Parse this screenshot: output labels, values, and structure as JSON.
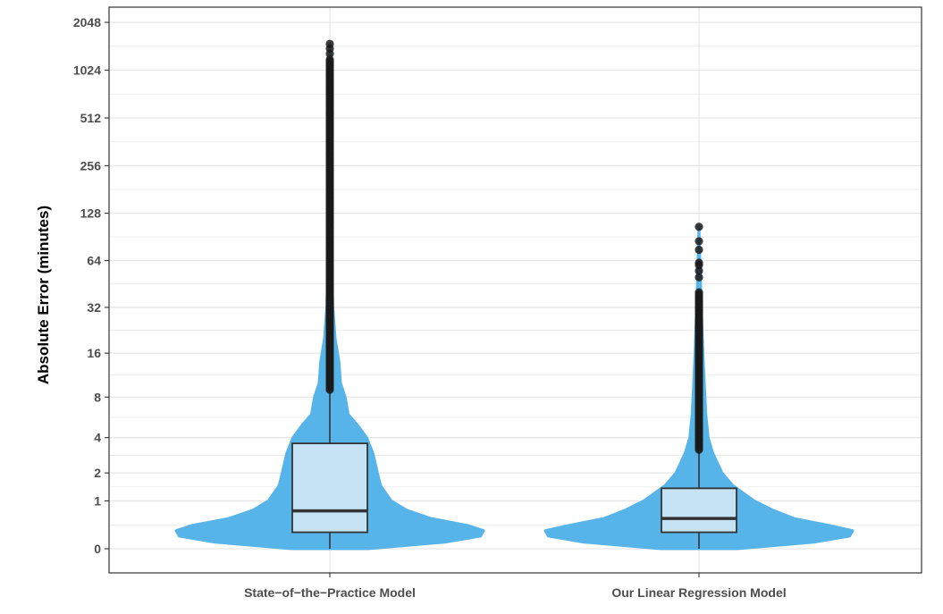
{
  "chart_data": {
    "type": "violin",
    "title": "",
    "xlabel": "",
    "ylabel": "Absolute Error (minutes)",
    "yscale": "log2(1 + y)",
    "y_ticks": [
      0,
      1,
      2,
      4,
      8,
      16,
      32,
      64,
      128,
      256,
      512,
      1024,
      2048
    ],
    "y_tick_labels": [
      "0",
      "1",
      "2",
      "4",
      "8",
      "16",
      "32",
      "64",
      "128",
      "256",
      "512",
      "1024",
      "2048"
    ],
    "ylim": [
      0,
      2048
    ],
    "grid": true,
    "legend": "none",
    "colors": {
      "violin": "#56b4e9",
      "box_fill": "#c6e3f6",
      "box_stroke": "#333333",
      "outlier": "#1a1a1a",
      "grid": "#e6e6e6",
      "panel_border": "#333333"
    },
    "categories": [
      "State−of−the−Practice Model",
      "Our Linear Regression Model"
    ],
    "series": [
      {
        "category": "State−of−the−Practice Model",
        "box": {
          "q1": 0.27,
          "median": 0.73,
          "q3": 3.6,
          "whisker_low": 0,
          "whisker_high": 9
        },
        "outliers": {
          "from": 9,
          "to": 1500
        }
      },
      {
        "category": "Our Linear Regression Model",
        "box": {
          "q1": 0.27,
          "median": 0.55,
          "q3": 1.4,
          "whisker_low": 0,
          "whisker_high": 3.2
        },
        "outliers": {
          "from": 3.2,
          "to": 105
        }
      }
    ]
  }
}
